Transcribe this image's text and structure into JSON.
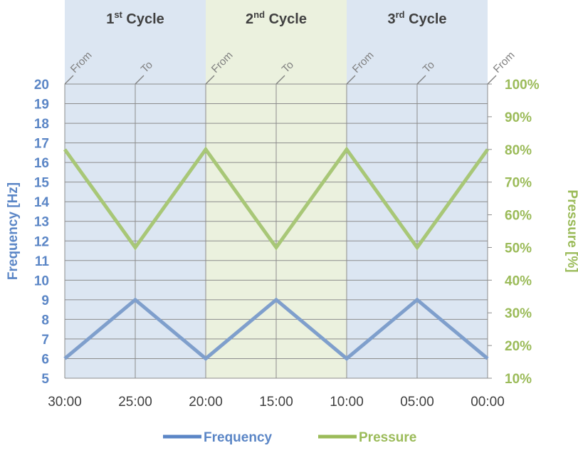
{
  "chart_data": {
    "type": "line",
    "x": [
      "30:00",
      "25:00",
      "20:00",
      "15:00",
      "10:00",
      "05:00",
      "00:00"
    ],
    "series": [
      {
        "name": "Frequency",
        "axis": "left",
        "color": "#7f9fcc",
        "legend_color": "#5b86c6",
        "values": [
          6,
          9,
          6,
          9,
          6,
          9,
          6
        ]
      },
      {
        "name": "Pressure",
        "axis": "right",
        "color": "#a8c777",
        "legend_color": "#9bbb59",
        "values": [
          80,
          50,
          80,
          50,
          80,
          50,
          80
        ]
      }
    ],
    "ylabel_left": "Frequency [Hz]",
    "ylabel_right": "Pressure [%]",
    "ylim_left": [
      5,
      20
    ],
    "yticks_left": [
      "5",
      "6",
      "7",
      "8",
      "9",
      "10",
      "11",
      "12",
      "13",
      "14",
      "15",
      "16",
      "17",
      "18",
      "19",
      "20"
    ],
    "ylim_right": [
      10,
      100
    ],
    "yticks_right": [
      "10%",
      "20%",
      "30%",
      "40%",
      "50%",
      "60%",
      "70%",
      "80%",
      "90%",
      "100%"
    ],
    "left_axis_color": "#5b86c6",
    "right_axis_color": "#9bbb59",
    "grid": true,
    "legend_position": "bottom",
    "cycles": [
      {
        "base": "1",
        "sup": "st",
        "rest": " Cycle",
        "color": "#dce6f2",
        "from_index": 0,
        "to_index": 2
      },
      {
        "base": "2",
        "sup": "nd",
        "rest": " Cycle",
        "color": "#ebf1de",
        "from_index": 2,
        "to_index": 4
      },
      {
        "base": "3",
        "sup": "rd",
        "rest": " Cycle",
        "color": "#dce6f2",
        "from_index": 4,
        "to_index": 6
      }
    ],
    "markers": [
      "From",
      "To",
      "From",
      "To",
      "From",
      "To",
      "From"
    ]
  }
}
